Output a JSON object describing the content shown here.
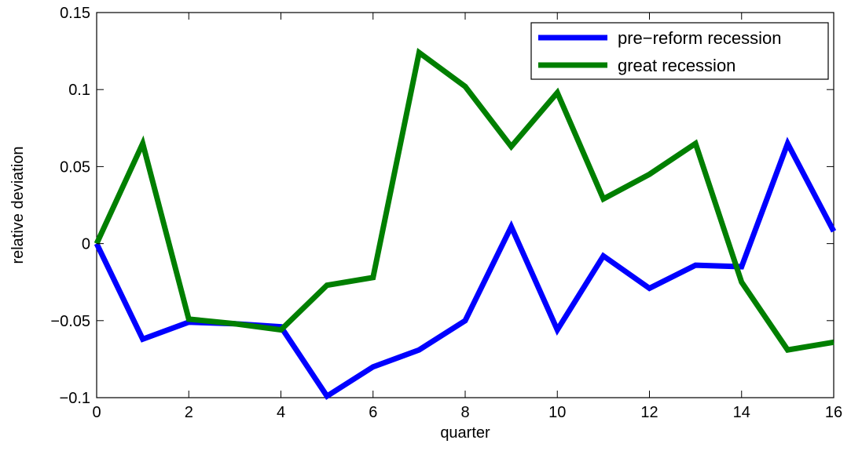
{
  "chart_data": {
    "type": "line",
    "title": "",
    "xlabel": "quarter",
    "ylabel": "relative deviation",
    "xlim": [
      0,
      16
    ],
    "ylim": [
      -0.1,
      0.15
    ],
    "xticks": [
      0,
      2,
      4,
      6,
      8,
      10,
      12,
      14,
      16
    ],
    "xtick_labels": [
      "0",
      "2",
      "4",
      "6",
      "8",
      "10",
      "12",
      "14",
      "16"
    ],
    "yticks": [
      -0.1,
      -0.05,
      0,
      0.05,
      0.1,
      0.15
    ],
    "ytick_labels": [
      "−0.1",
      "−0.05",
      "0",
      "0.05",
      "0.1",
      "0.15"
    ],
    "grid": false,
    "legend_position": "top-right",
    "x": [
      0,
      1,
      2,
      3,
      4,
      5,
      6,
      7,
      8,
      9,
      10,
      11,
      12,
      13,
      14,
      15,
      16
    ],
    "series": [
      {
        "name": "pre−reform recession",
        "color": "#0000ff",
        "values": [
          0,
          -0.062,
          -0.051,
          -0.052,
          -0.054,
          -0.099,
          -0.08,
          -0.069,
          -0.05,
          0.011,
          -0.056,
          -0.008,
          -0.029,
          -0.014,
          -0.015,
          0.065,
          0.008
        ]
      },
      {
        "name": "great recession",
        "color": "#007f00",
        "values": [
          0,
          0.065,
          -0.049,
          -0.052,
          -0.056,
          -0.027,
          -0.022,
          0.124,
          0.102,
          0.063,
          0.098,
          0.029,
          0.045,
          0.065,
          -0.025,
          -0.069,
          -0.064
        ]
      }
    ]
  }
}
